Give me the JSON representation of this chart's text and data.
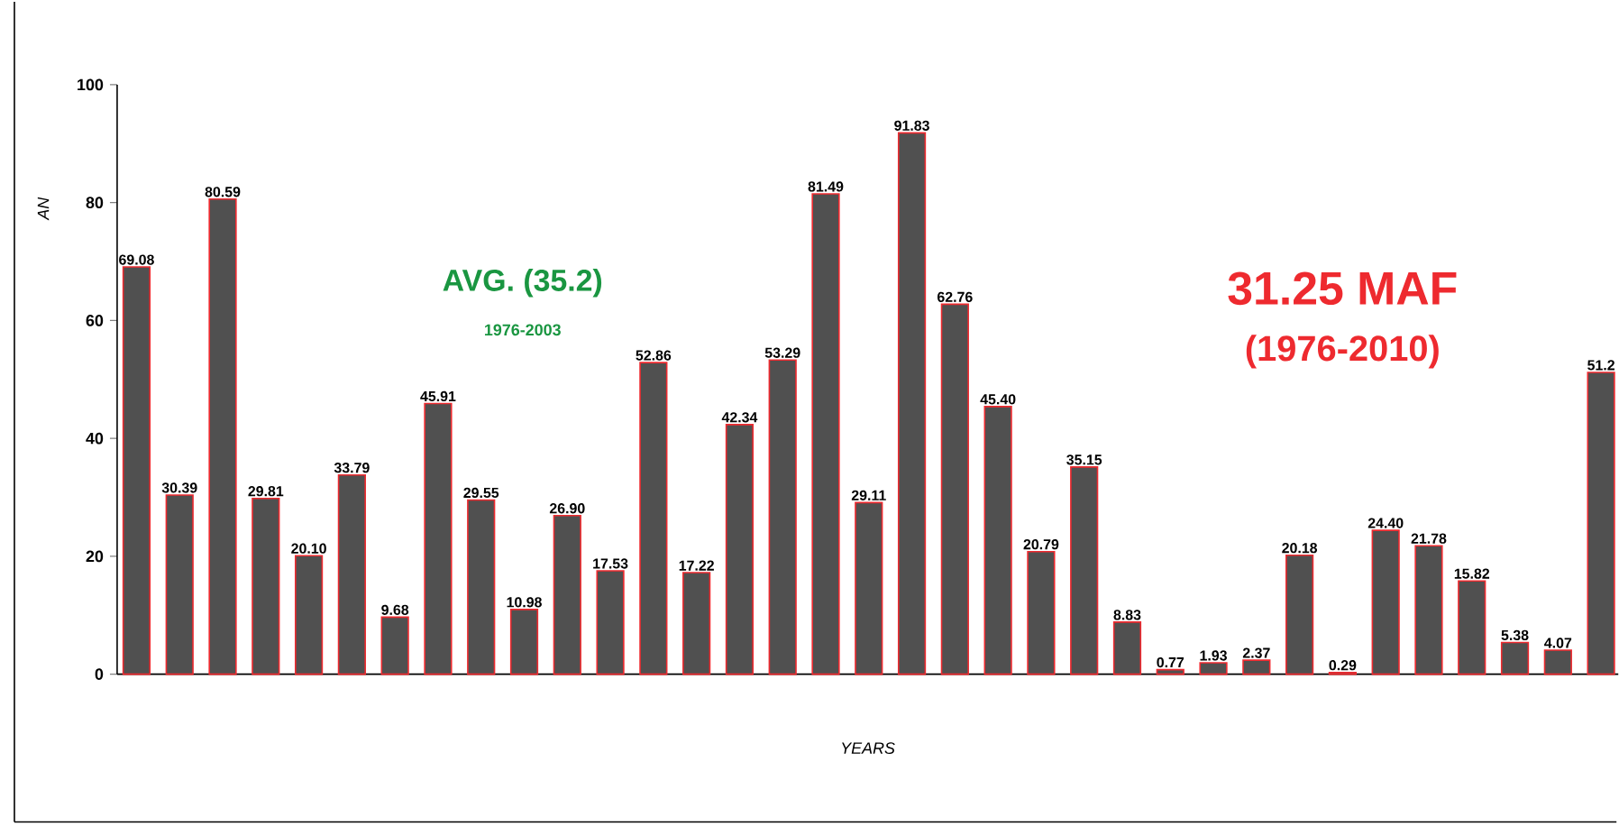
{
  "chart_data": {
    "type": "bar",
    "ylabel": "AN",
    "xlabel": "YEARS",
    "categories": [
      null,
      null,
      null,
      null,
      null,
      null,
      null,
      null,
      null,
      null,
      null,
      null,
      null,
      null,
      null,
      null,
      null,
      null,
      null,
      null,
      null,
      null,
      null,
      null,
      null,
      null,
      null,
      null,
      null,
      null,
      null,
      null,
      null,
      null,
      null
    ],
    "values": [
      69.08,
      30.39,
      80.59,
      29.81,
      20.1,
      33.79,
      9.68,
      45.91,
      29.55,
      10.98,
      26.9,
      17.53,
      52.86,
      17.22,
      42.34,
      53.29,
      81.49,
      29.11,
      91.83,
      62.76,
      45.4,
      20.79,
      35.15,
      8.83,
      0.77,
      1.93,
      2.37,
      20.18,
      0.29,
      24.4,
      21.78,
      15.82,
      5.38,
      4.07,
      51.2
    ],
    "value_labels": [
      "69.08",
      "30.39",
      "80.59",
      "29.81",
      "20.10",
      "33.79",
      "9.68",
      "45.91",
      "29.55",
      "10.98",
      "26.90",
      "17.53",
      "52.86",
      "17.22",
      "42.34",
      "53.29",
      "81.49",
      "29.11",
      "91.83",
      "62.76",
      "45.40",
      "20.79",
      "35.15",
      "8.83",
      "0.77",
      "1.93",
      "2.37",
      "20.18",
      "0.29",
      "24.40",
      "21.78",
      "15.82",
      "5.38",
      "4.07",
      "51.2"
    ],
    "color": "#505050",
    "ylim": [
      0,
      100
    ],
    "yticks": [
      0,
      20,
      40,
      60,
      80,
      100
    ],
    "grid": false,
    "annotations": [
      "AVG. (35.2)",
      "1976-2003",
      "31.25 MAF",
      "(1976-2010)"
    ]
  }
}
